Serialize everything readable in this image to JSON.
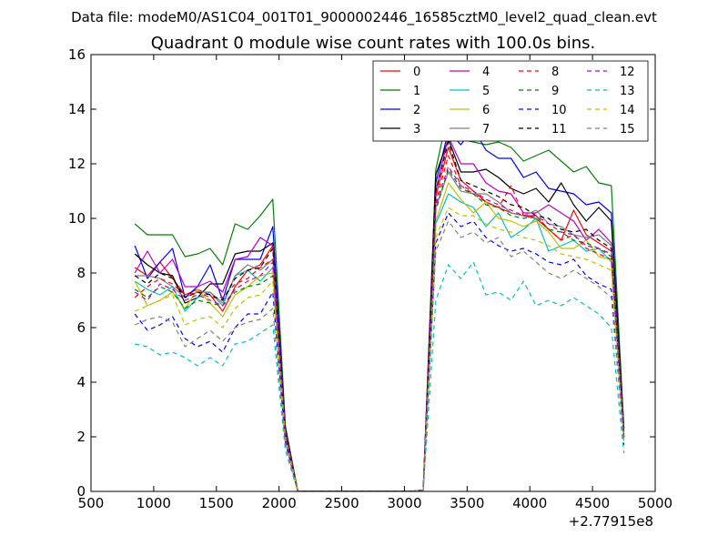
{
  "suptitle": "Data file: modeM0/AS1C04_001T01_9000002446_16585cztM0_level2_quad_clean.evt",
  "chart_data": {
    "type": "line",
    "title": "Quadrant 0 module wise count rates with 100.0s bins.",
    "xlabel": "",
    "ylabel": "",
    "x_offset_label": "+2.77915e8",
    "xlim": [
      500,
      5000
    ],
    "ylim": [
      0,
      16
    ],
    "xticks": [
      500,
      1000,
      1500,
      2000,
      2500,
      3000,
      3500,
      4000,
      4500,
      5000
    ],
    "yticks": [
      0,
      2,
      4,
      6,
      8,
      10,
      12,
      14,
      16
    ],
    "grid": false,
    "legend_position": "top-right",
    "legend_columns": 4,
    "x": [
      850,
      950,
      1050,
      1150,
      1250,
      1350,
      1450,
      1550,
      1650,
      1750,
      1850,
      1950,
      2050,
      2150,
      2250,
      2350,
      2450,
      2550,
      2650,
      2750,
      2850,
      2950,
      3050,
      3150,
      3250,
      3350,
      3450,
      3550,
      3650,
      3750,
      3850,
      3950,
      4050,
      4150,
      4250,
      4350,
      4450,
      4550,
      4650,
      4750
    ],
    "series": [
      {
        "name": "0",
        "color": "#ff0000",
        "dash": "solid",
        "values": [
          8.2,
          7.9,
          8.4,
          7.8,
          7.2,
          7.4,
          7.2,
          6.6,
          7.5,
          8.1,
          8.3,
          9.0,
          2.2,
          0,
          0,
          0,
          0,
          0,
          0,
          0,
          0,
          0,
          0,
          0.05,
          10.8,
          12.6,
          11.4,
          11.0,
          10.6,
          10.4,
          10.2,
          10.1,
          10.0,
          9.6,
          9.2,
          10.3,
          9.4,
          9.1,
          8.8,
          2.0
        ]
      },
      {
        "name": "1",
        "color": "#008000",
        "dash": "solid",
        "values": [
          9.8,
          9.4,
          9.4,
          9.4,
          8.6,
          8.7,
          8.9,
          8.3,
          9.8,
          9.6,
          10.1,
          10.7,
          2.4,
          0,
          0,
          0,
          0,
          0,
          0,
          0,
          0,
          0,
          0,
          0.05,
          11.8,
          13.9,
          12.9,
          12.8,
          12.7,
          12.8,
          12.6,
          12.1,
          12.3,
          12.5,
          12.1,
          11.7,
          11.9,
          11.3,
          11.2,
          2.3
        ]
      },
      {
        "name": "2",
        "color": "#0000ff",
        "dash": "solid",
        "values": [
          9.0,
          7.8,
          8.4,
          8.9,
          7.1,
          7.5,
          8.3,
          7.0,
          8.5,
          8.5,
          8.5,
          9.7,
          2.3,
          0,
          0,
          0,
          0,
          0,
          0,
          0,
          0,
          0,
          0,
          0.05,
          11.3,
          13.2,
          12.7,
          13.3,
          12.5,
          12.2,
          12.2,
          11.5,
          11.7,
          11.1,
          11.0,
          10.9,
          10.5,
          10.6,
          10.2,
          2.2
        ]
      },
      {
        "name": "3",
        "color": "#000000",
        "dash": "solid",
        "values": [
          8.7,
          8.3,
          8.0,
          7.9,
          6.9,
          7.1,
          7.6,
          7.6,
          8.7,
          8.8,
          8.8,
          9.1,
          2.3,
          0,
          0,
          0,
          0,
          0,
          0,
          0,
          0,
          0,
          0,
          0.05,
          11.6,
          12.9,
          11.7,
          11.7,
          11.8,
          11.5,
          11.1,
          10.9,
          11.1,
          10.6,
          11.3,
          10.5,
          9.9,
          10.4,
          9.9,
          2.3
        ]
      },
      {
        "name": "4",
        "color": "#c000c0",
        "dash": "solid",
        "values": [
          8.0,
          8.8,
          8.0,
          8.5,
          7.5,
          7.5,
          7.7,
          7.3,
          8.5,
          8.6,
          9.3,
          9.0,
          2.2,
          0,
          0,
          0,
          0,
          0,
          0,
          0,
          0,
          0,
          0,
          0.05,
          11.0,
          13.0,
          12.0,
          12.0,
          11.3,
          11.0,
          10.9,
          10.2,
          10.2,
          10.5,
          10.2,
          9.9,
          9.2,
          9.6,
          9.1,
          2.1
        ]
      },
      {
        "name": "5",
        "color": "#00c0c0",
        "dash": "solid",
        "values": [
          7.7,
          7.4,
          7.2,
          7.5,
          6.6,
          7.1,
          7.3,
          6.8,
          7.9,
          8.1,
          7.7,
          8.2,
          2.0,
          0,
          0,
          0,
          0,
          0,
          0,
          0,
          0,
          0,
          0,
          0.05,
          9.8,
          10.9,
          10.6,
          10.4,
          9.7,
          10.2,
          9.3,
          9.6,
          10.0,
          8.8,
          9.0,
          9.2,
          8.8,
          8.9,
          8.4,
          1.9
        ]
      },
      {
        "name": "6",
        "color": "#c0c000",
        "dash": "solid",
        "values": [
          7.7,
          6.8,
          7.0,
          7.3,
          6.7,
          7.4,
          6.9,
          6.4,
          7.2,
          7.5,
          7.9,
          8.0,
          2.0,
          0,
          0,
          0,
          0,
          0,
          0,
          0,
          0,
          0,
          0,
          0.05,
          9.9,
          11.3,
          10.7,
          10.2,
          10.6,
          10.0,
          9.9,
          9.7,
          9.9,
          9.5,
          8.9,
          8.9,
          9.2,
          8.6,
          8.5,
          2.0
        ]
      },
      {
        "name": "7",
        "color": "#808080",
        "dash": "solid",
        "values": [
          7.9,
          7.9,
          7.8,
          7.5,
          7.1,
          7.3,
          7.3,
          6.9,
          7.9,
          8.3,
          8.1,
          8.5,
          2.1,
          0,
          0,
          0,
          0,
          0,
          0,
          0,
          0,
          0,
          0,
          0.05,
          10.4,
          11.7,
          11.0,
          10.9,
          10.9,
          10.6,
          10.2,
          10.1,
          10.3,
          9.8,
          9.7,
          9.4,
          9.3,
          9.4,
          9.0,
          2.1
        ]
      },
      {
        "name": "8",
        "color": "#ff0000",
        "dash": "dashed",
        "values": [
          7.1,
          7.5,
          7.8,
          7.6,
          7.2,
          7.3,
          7.1,
          7.1,
          7.6,
          7.8,
          8.2,
          8.5,
          2.0,
          0,
          0,
          0,
          0,
          0,
          0,
          0,
          0,
          0,
          0,
          0.05,
          10.6,
          12.3,
          11.2,
          10.9,
          10.6,
          10.4,
          11.2,
          10.1,
          10.1,
          9.6,
          9.2,
          9.4,
          8.9,
          8.7,
          8.5,
          2.0
        ]
      },
      {
        "name": "9",
        "color": "#008000",
        "dash": "dashed",
        "values": [
          7.4,
          7.1,
          7.5,
          7.3,
          6.7,
          7.0,
          6.9,
          6.8,
          7.3,
          7.5,
          7.6,
          7.9,
          1.9,
          0,
          0,
          0,
          0,
          0,
          0,
          0,
          0,
          0,
          0,
          0.05,
          10.3,
          11.8,
          11.1,
          10.9,
          10.5,
          10.4,
          10.1,
          10.0,
          10.1,
          9.6,
          9.5,
          9.2,
          9.1,
          8.9,
          8.6,
          2.0
        ]
      },
      {
        "name": "10",
        "color": "#0000ff",
        "dash": "dashed",
        "values": [
          6.5,
          5.9,
          6.1,
          6.4,
          5.6,
          5.3,
          5.5,
          5.1,
          6.0,
          6.5,
          6.5,
          7.3,
          1.8,
          0,
          0,
          0,
          0,
          0,
          0,
          0,
          0,
          0,
          0,
          0.05,
          9.1,
          10.2,
          9.7,
          9.9,
          9.3,
          9.0,
          8.8,
          8.9,
          8.7,
          8.4,
          8.3,
          8.5,
          7.9,
          7.6,
          7.4,
          1.7
        ]
      },
      {
        "name": "11",
        "color": "#000000",
        "dash": "dashed",
        "values": [
          7.9,
          7.6,
          8.0,
          7.8,
          7.1,
          7.3,
          7.2,
          7.0,
          7.8,
          8.1,
          8.2,
          8.9,
          2.1,
          0,
          0,
          0,
          0,
          0,
          0,
          0,
          0,
          0,
          0,
          0.05,
          11.0,
          12.8,
          11.4,
          11.2,
          11.0,
          10.8,
          10.5,
          10.4,
          10.1,
          10.0,
          9.6,
          9.5,
          9.6,
          9.2,
          8.9,
          2.1
        ]
      },
      {
        "name": "12",
        "color": "#c000c0",
        "dash": "dashed",
        "values": [
          7.3,
          7.0,
          7.6,
          7.4,
          7.0,
          7.2,
          7.0,
          6.8,
          7.4,
          7.7,
          7.9,
          8.4,
          2.0,
          0,
          0,
          0,
          0,
          0,
          0,
          0,
          0,
          0,
          0,
          0.05,
          10.5,
          11.9,
          11.2,
          11.0,
          10.7,
          10.5,
          10.3,
          10.1,
          10.1,
          9.8,
          9.5,
          9.4,
          9.0,
          8.9,
          8.7,
          2.0
        ]
      },
      {
        "name": "13",
        "color": "#00c0c0",
        "dash": "dashed",
        "values": [
          5.4,
          5.3,
          5.0,
          5.1,
          4.9,
          4.6,
          4.9,
          4.6,
          5.4,
          5.5,
          5.8,
          6.1,
          1.5,
          0,
          0,
          0,
          0,
          0,
          0,
          0,
          0,
          0,
          0,
          0.05,
          7.0,
          8.3,
          7.8,
          8.4,
          7.2,
          7.3,
          7.0,
          7.7,
          6.8,
          7.0,
          6.8,
          7.1,
          6.8,
          6.5,
          6.0,
          1.4
        ]
      },
      {
        "name": "14",
        "color": "#c0c000",
        "dash": "dashed",
        "values": [
          6.6,
          6.8,
          7.0,
          7.2,
          6.1,
          6.3,
          6.4,
          6.0,
          6.7,
          7.1,
          7.2,
          7.7,
          1.9,
          0,
          0,
          0,
          0,
          0,
          0,
          0,
          0,
          0,
          0,
          0.05,
          9.3,
          10.4,
          10.1,
          10.1,
          9.8,
          9.6,
          9.5,
          9.3,
          9.2,
          9.0,
          8.7,
          8.6,
          8.5,
          8.3,
          8.1,
          1.8
        ]
      },
      {
        "name": "15",
        "color": "#808080",
        "dash": "dashed",
        "values": [
          6.1,
          6.3,
          6.4,
          6.2,
          5.3,
          5.6,
          5.9,
          5.5,
          6.0,
          6.2,
          6.3,
          6.7,
          1.7,
          0,
          0,
          0,
          0,
          0,
          0,
          0,
          0,
          0,
          0,
          0.05,
          8.8,
          9.9,
          9.3,
          9.5,
          9.1,
          9.3,
          8.6,
          8.8,
          8.4,
          8.0,
          7.8,
          8.1,
          7.8,
          7.5,
          7.1,
          1.8
        ]
      }
    ]
  }
}
